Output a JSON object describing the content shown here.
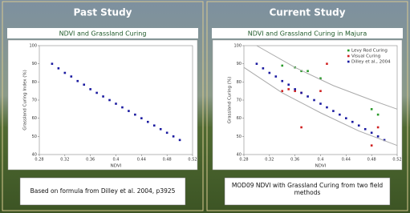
{
  "chart_data": [
    {
      "type": "scatter",
      "title": "Past Study",
      "subtitle": "NDVI and Grassland Curing",
      "caption": "Based on formula from Dilley et al. 2004, p3925",
      "xlabel": "NDVI",
      "ylabel": "Grassland Curing Index (%)",
      "xlim": [
        0.28,
        0.52
      ],
      "xticks": [
        0.28,
        0.32,
        0.36,
        0.4,
        0.44,
        0.48,
        0.52
      ],
      "ylim": [
        40,
        100
      ],
      "yticks": [
        40,
        50,
        60,
        70,
        80,
        90,
        100
      ],
      "series": [
        {
          "color": "#1a1aa0",
          "x": [
            0.3,
            0.31,
            0.32,
            0.33,
            0.34,
            0.35,
            0.36,
            0.37,
            0.38,
            0.39,
            0.4,
            0.41,
            0.42,
            0.43,
            0.44,
            0.45,
            0.46,
            0.47,
            0.48,
            0.49,
            0.5
          ],
          "values": [
            90,
            87.5,
            85,
            83,
            80.5,
            78.5,
            76,
            74,
            72,
            70,
            68,
            66,
            64,
            62,
            60,
            58,
            56,
            54,
            52,
            50,
            48
          ]
        }
      ]
    },
    {
      "type": "scatter",
      "title": "Current Study",
      "subtitle": "NDVI and Grassland Curing in Majura",
      "caption": "MOD09 NDVI with Grassland Curing from two field methods",
      "xlabel": "NDVI",
      "ylabel": "Grassland Curing (%)",
      "xlim": [
        0.28,
        0.52
      ],
      "xticks": [
        0.28,
        0.32,
        0.36,
        0.4,
        0.44,
        0.48,
        0.52
      ],
      "ylim": [
        40,
        100
      ],
      "yticks": [
        40,
        50,
        60,
        70,
        80,
        90,
        100
      ],
      "series": [
        {
          "name": "Levy Rod Curing",
          "color": "#2a9a2a",
          "x": [
            0.34,
            0.36,
            0.37,
            0.38,
            0.4,
            0.48,
            0.49
          ],
          "values": [
            89,
            88,
            86,
            86,
            82,
            65,
            62
          ]
        },
        {
          "name": "Visual Curing",
          "color": "#d02020",
          "x": [
            0.34,
            0.35,
            0.36,
            0.37,
            0.37,
            0.4,
            0.41,
            0.48,
            0.49
          ],
          "values": [
            75,
            76,
            75,
            74,
            55,
            75,
            90,
            45,
            55
          ]
        },
        {
          "name": "Dilley et al., 2004",
          "color": "#1a1aa0",
          "x": [
            0.3,
            0.31,
            0.32,
            0.33,
            0.34,
            0.35,
            0.36,
            0.37,
            0.38,
            0.39,
            0.4,
            0.41,
            0.42,
            0.43,
            0.44,
            0.45,
            0.46,
            0.47,
            0.48,
            0.49,
            0.5
          ],
          "values": [
            90,
            87.5,
            85,
            83,
            80.5,
            78.5,
            76,
            74,
            72,
            70,
            68,
            66,
            64,
            62,
            60,
            58,
            56,
            54,
            52,
            50,
            48
          ]
        },
        {
          "line": true,
          "color": "#aaaaaa",
          "x": [
            0.3,
            0.36,
            0.42,
            0.48,
            0.52
          ],
          "values": [
            100,
            88,
            78,
            70,
            65
          ]
        },
        {
          "line": true,
          "color": "#aaaaaa",
          "x": [
            0.28,
            0.34,
            0.4,
            0.46,
            0.52
          ],
          "values": [
            88,
            74,
            63,
            53,
            45
          ]
        }
      ]
    }
  ]
}
